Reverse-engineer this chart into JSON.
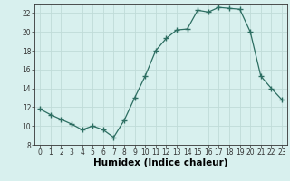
{
  "x": [
    0,
    1,
    2,
    3,
    4,
    5,
    6,
    7,
    8,
    9,
    10,
    11,
    12,
    13,
    14,
    15,
    16,
    17,
    18,
    19,
    20,
    21,
    22,
    23
  ],
  "y": [
    11.8,
    11.2,
    10.7,
    10.2,
    9.6,
    10.0,
    9.6,
    8.8,
    10.6,
    13.0,
    15.3,
    18.0,
    19.3,
    20.2,
    20.3,
    22.3,
    22.1,
    22.6,
    22.5,
    22.4,
    20.0,
    15.3,
    14.0,
    12.8
  ],
  "xlabel": "Humidex (Indice chaleur)",
  "ylim": [
    8,
    23
  ],
  "xlim": [
    -0.5,
    23.5
  ],
  "yticks": [
    8,
    10,
    12,
    14,
    16,
    18,
    20,
    22
  ],
  "xticks": [
    0,
    1,
    2,
    3,
    4,
    5,
    6,
    7,
    8,
    9,
    10,
    11,
    12,
    13,
    14,
    15,
    16,
    17,
    18,
    19,
    20,
    21,
    22,
    23
  ],
  "line_color": "#2d6e62",
  "marker": "+",
  "bg_color": "#d8f0ee",
  "grid_major_color": "#c0dbd8",
  "grid_minor_color": "#e0f4f2",
  "axis_color": "#333333",
  "tick_label_fontsize": 5.5,
  "xlabel_fontsize": 7.5
}
